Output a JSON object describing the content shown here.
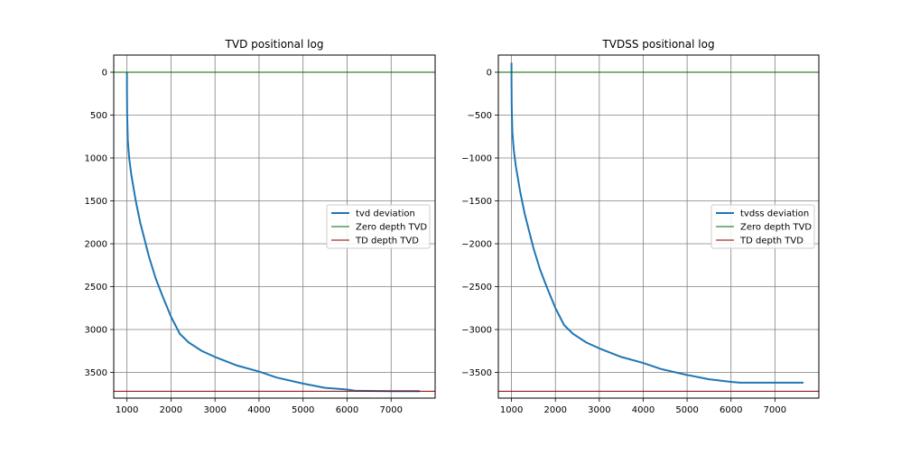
{
  "chart_data": [
    {
      "type": "line",
      "title": "TVD positional log",
      "xlabel": "",
      "ylabel": "",
      "xlim": [
        700,
        8000
      ],
      "ylim": [
        3800,
        -200
      ],
      "y_inverted": true,
      "xticks": [
        1000,
        2000,
        3000,
        4000,
        5000,
        6000,
        7000
      ],
      "xtick_labels": [
        "1000",
        "2000",
        "3000",
        "4000",
        "5000",
        "6000",
        "7000"
      ],
      "yticks": [
        0,
        500,
        1000,
        1500,
        2000,
        2500,
        3000,
        3500
      ],
      "ytick_labels": [
        "0",
        "500",
        "1000",
        "1500",
        "2000",
        "2500",
        "3000",
        "3500"
      ],
      "grid": true,
      "legend_position": "center-right",
      "series": [
        {
          "name": "tvd deviation",
          "color": "#1f77b4",
          "x": [
            1000,
            1000,
            1005,
            1020,
            1050,
            1100,
            1200,
            1300,
            1400,
            1500,
            1650,
            1800,
            2000,
            2200,
            2400,
            2700,
            3000,
            3500,
            4000,
            4400,
            5000,
            5500,
            6000,
            6200,
            7000,
            7650
          ],
          "y": [
            0,
            200,
            500,
            800,
            1000,
            1200,
            1500,
            1750,
            1950,
            2150,
            2400,
            2600,
            2850,
            3050,
            3150,
            3250,
            3320,
            3420,
            3490,
            3560,
            3630,
            3680,
            3700,
            3715,
            3718,
            3718
          ]
        },
        {
          "name": "Zero depth TVD",
          "color": "#006400",
          "x": [
            700,
            8000
          ],
          "y": [
            0,
            0
          ]
        },
        {
          "name": "TD depth TVD",
          "color": "#8b0000",
          "x": [
            700,
            8000
          ],
          "y": [
            3720,
            3720
          ]
        }
      ]
    },
    {
      "type": "line",
      "title": "TVDSS positional log",
      "xlabel": "",
      "ylabel": "",
      "xlim": [
        700,
        8000
      ],
      "ylim": [
        -3800,
        200
      ],
      "y_inverted": false,
      "xticks": [
        1000,
        2000,
        3000,
        4000,
        5000,
        6000,
        7000
      ],
      "xtick_labels": [
        "1000",
        "2000",
        "3000",
        "4000",
        "5000",
        "6000",
        "7000"
      ],
      "yticks": [
        0,
        -500,
        -1000,
        -1500,
        -2000,
        -2500,
        -3000,
        -3500
      ],
      "ytick_labels": [
        "0",
        "−500",
        "−1000",
        "−1500",
        "−2000",
        "−2500",
        "−3000",
        "−3500"
      ],
      "grid": true,
      "legend_position": "center-right",
      "series": [
        {
          "name": "tvdss deviation",
          "color": "#1f77b4",
          "x": [
            1000,
            1000,
            1005,
            1020,
            1050,
            1100,
            1200,
            1300,
            1400,
            1500,
            1650,
            1800,
            2000,
            2200,
            2400,
            2700,
            3000,
            3500,
            4000,
            4400,
            5000,
            5500,
            6000,
            6200,
            7000,
            7650
          ],
          "y": [
            110,
            -100,
            -400,
            -700,
            -900,
            -1100,
            -1400,
            -1650,
            -1850,
            -2050,
            -2300,
            -2500,
            -2750,
            -2950,
            -3050,
            -3150,
            -3220,
            -3320,
            -3390,
            -3460,
            -3530,
            -3580,
            -3610,
            -3620,
            -3620,
            -3620
          ]
        },
        {
          "name": "Zero depth TVD",
          "color": "#006400",
          "x": [
            700,
            8000
          ],
          "y": [
            0,
            0
          ]
        },
        {
          "name": "TD depth TVD",
          "color": "#8b0000",
          "x": [
            700,
            8000
          ],
          "y": [
            -3720,
            -3720
          ]
        }
      ]
    }
  ]
}
